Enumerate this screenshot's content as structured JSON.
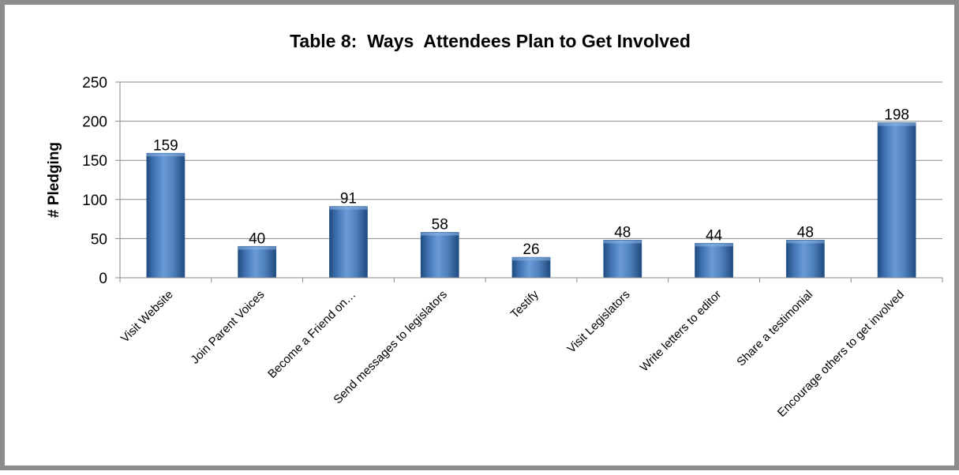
{
  "chart_data": {
    "type": "bar",
    "title": "Table 8:  Ways  Attendees Plan to Get Involved",
    "xlabel": "",
    "ylabel": "# Pledging",
    "categories": [
      "Visit Website",
      "Join Parent Voices",
      "Become a Friend on…",
      "Send messages to legislators",
      "Testify",
      "Visit Legislators",
      "Write letters to editor",
      "Share a testimonial",
      "Encourage others to get involved"
    ],
    "values": [
      159,
      40,
      91,
      58,
      26,
      48,
      44,
      48,
      198
    ],
    "data_labels": [
      "159",
      "40",
      "91",
      "58",
      "26",
      "48",
      "44",
      "48",
      "198"
    ],
    "ylim": [
      0,
      250
    ],
    "yticks": [
      0,
      50,
      100,
      150,
      200,
      250
    ],
    "ytick_labels": [
      "0",
      "50",
      "100",
      "150",
      "200",
      "250"
    ],
    "grid": true,
    "legend": "none",
    "colors": {
      "bar": "#4f81bd",
      "bar_dark": "#254e80",
      "grid": "#8c8c8c",
      "frame": "#8c8c8c"
    }
  }
}
